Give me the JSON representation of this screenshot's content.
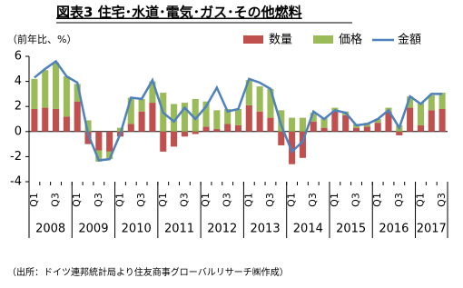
{
  "chart_data": {
    "type": "bar-line",
    "title": "図表3 住宅･水道･電気･ガス･その他燃料",
    "y_label": "（前年比、%）",
    "source": "（出所：ドイツ連邦統計局より住友商事グローバルリサーチ㈱作成）",
    "categories": [
      "Q1",
      null,
      "Q3",
      null,
      "Q1",
      null,
      "Q3",
      null,
      "Q1",
      null,
      "Q3",
      null,
      "Q1",
      null,
      "Q3",
      null,
      "Q1",
      null,
      "Q3",
      null,
      "Q1",
      null,
      "Q3",
      null,
      "Q1",
      null,
      "Q3",
      null,
      "Q1",
      null,
      "Q3",
      null,
      "Q1",
      null,
      "Q3",
      null,
      "Q1",
      null,
      "Q3"
    ],
    "years": [
      "2008",
      "2009",
      "2010",
      "2011",
      "2012",
      "2013",
      "2014",
      "2015",
      "2016",
      "2017"
    ],
    "series": [
      {
        "name": "数量",
        "type": "bar",
        "color": "#c0504d",
        "values": [
          1.8,
          1.9,
          1.8,
          1.2,
          2.4,
          -1.0,
          -1.5,
          -1.6,
          -0.4,
          0.6,
          1.6,
          2.3,
          -1.6,
          -1.2,
          -0.4,
          -0.2,
          0.4,
          0.2,
          0.6,
          0.5,
          2.1,
          1.6,
          1.1,
          -1.1,
          -2.6,
          -2.1,
          0.8,
          0.3,
          1.6,
          1.3,
          0.3,
          0.4,
          0.7,
          1.6,
          -0.3,
          1.9,
          0.5,
          1.7,
          1.8
        ]
      },
      {
        "name": "価格",
        "type": "bar",
        "color": "#9bbb59",
        "values": [
          2.4,
          3.0,
          3.7,
          3.2,
          1.4,
          0.9,
          -0.9,
          -0.6,
          0.3,
          2.1,
          1.0,
          1.7,
          3.1,
          2.2,
          2.3,
          2.6,
          2.0,
          1.5,
          1.2,
          1.3,
          2.0,
          2.0,
          2.3,
          1.7,
          1.1,
          1.1,
          0.7,
          0.8,
          0.3,
          0.3,
          0.3,
          0.3,
          0.3,
          0.3,
          0.5,
          0.9,
          1.8,
          1.2,
          1.3
        ]
      },
      {
        "name": "金額",
        "type": "line",
        "color": "#4f81bd",
        "values": [
          4.3,
          5.0,
          5.6,
          4.4,
          3.9,
          -0.2,
          -2.3,
          -2.2,
          -0.2,
          2.7,
          2.6,
          4.1,
          1.5,
          0.8,
          1.9,
          1.0,
          2.0,
          3.5,
          1.6,
          1.8,
          4.2,
          3.9,
          3.4,
          0.5,
          -1.6,
          -0.8,
          1.6,
          1.0,
          1.7,
          1.5,
          0.5,
          0.6,
          1.0,
          1.7,
          0.3,
          2.8,
          2.2,
          3.0,
          3.0
        ]
      }
    ],
    "ylim": [
      -4,
      6
    ],
    "yticks": [
      -4,
      -2,
      0,
      2,
      4,
      6
    ]
  }
}
